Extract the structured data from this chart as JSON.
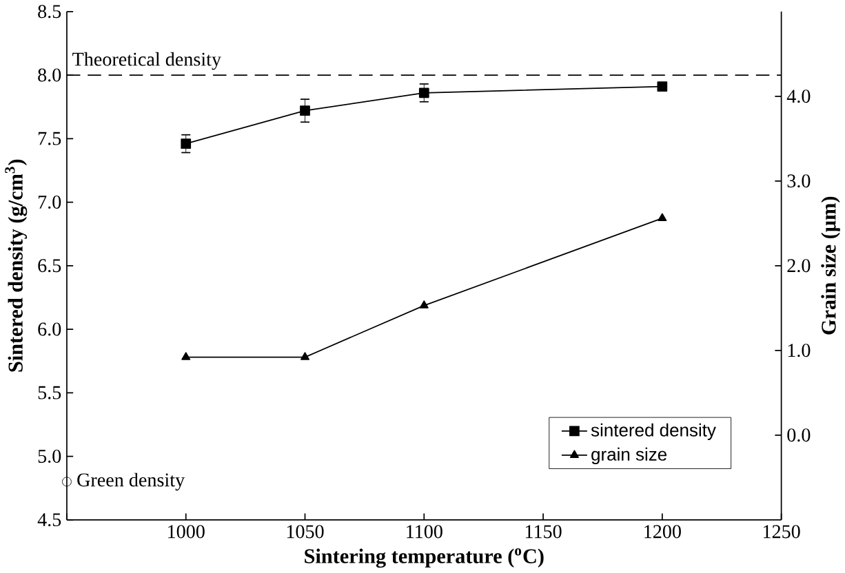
{
  "chart_data": {
    "type": "line",
    "xlabel": "Sintering temperature ($^{o}$C)",
    "ylabel": "Sintered density (g/cm$^{3}$)",
    "y2label": "Grain size (µm)",
    "xlim": [
      950,
      1250
    ],
    "xticks": [
      {
        "value": 950,
        "label": null
      },
      1000,
      1050,
      1100,
      1150,
      1200,
      1250
    ],
    "ylim": [
      4.5,
      8.5
    ],
    "yticks": [
      4.5,
      {
        "value": 5.0,
        "label": "5.0"
      },
      5.5,
      {
        "value": 6.0,
        "label": "6.0"
      },
      6.5,
      {
        "value": 7.0,
        "label": "7.0"
      },
      7.5,
      {
        "value": 8.0,
        "label": "8.0"
      },
      8.5
    ],
    "y2lim": [
      -1.0,
      5.0
    ],
    "y2ticks": [
      {
        "value": 0,
        "label": "0.0"
      },
      {
        "value": 1,
        "label": "1.0"
      },
      {
        "value": 2,
        "label": "2.0"
      },
      {
        "value": 3,
        "label": "3.0"
      },
      {
        "value": 4,
        "label": "4.0"
      }
    ],
    "series": [
      {
        "name": "sintered density",
        "color": "#000000",
        "marker": "square",
        "x": [
          1000,
          1050,
          1100,
          1200
        ],
        "values": [
          7.46,
          7.72,
          7.86,
          7.91
        ],
        "errors": [
          0.07,
          0.09,
          0.07,
          0.03
        ]
      },
      {
        "name": "grain size",
        "color": "#000000",
        "marker": "triangle",
        "axis": "y2",
        "x": [
          1000,
          1050,
          1100,
          1200
        ],
        "values": [
          0.92,
          0.92,
          1.53,
          2.56
        ]
      },
      {
        "type": "scatter",
        "color": "#000000",
        "marker": "circle",
        "x": [
          950
        ],
        "values": [
          4.8
        ]
      }
    ],
    "ref_lines": [
      {
        "axis": "y",
        "value": 8.0,
        "label": "Theoretical density",
        "line_style": "dashed",
        "color": "#000000"
      }
    ],
    "annotations": [
      {
        "text": "Green density",
        "x": 950,
        "y": 4.8
      }
    ],
    "legend": "bottom right"
  }
}
